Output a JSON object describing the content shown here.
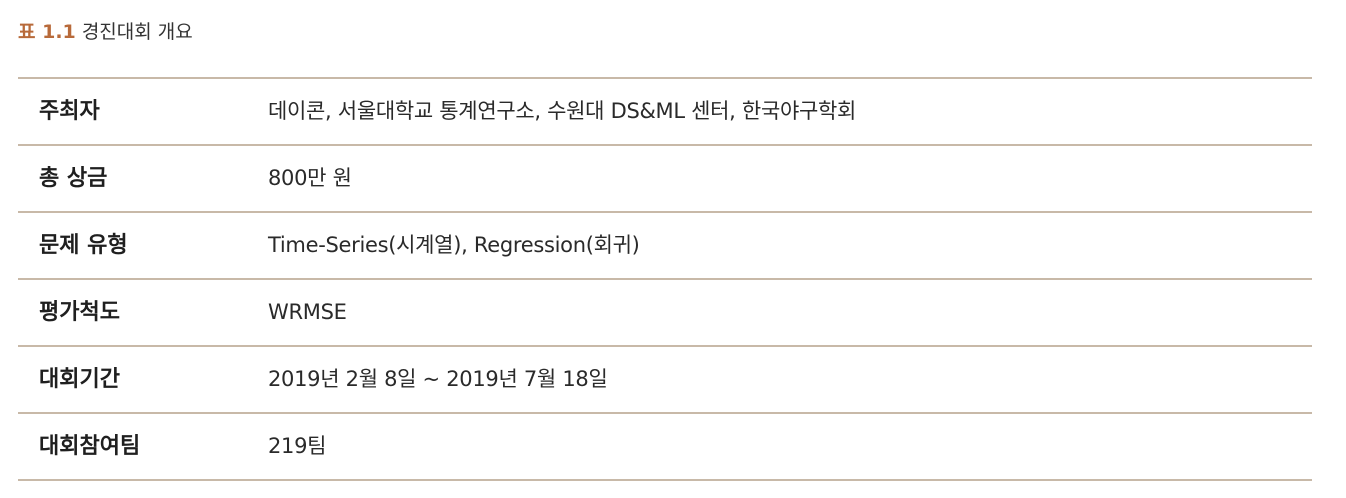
{
  "caption": {
    "label": "표 1.1",
    "title": "경진대회 개요"
  },
  "table": {
    "rows": [
      {
        "key": "주최자",
        "value": "데이콘, 서울대학교 통계연구소, 수원대 DS&ML 센터, 한국야구학회"
      },
      {
        "key": "총 상금",
        "value": "800만 원"
      },
      {
        "key": "문제 유형",
        "value": "Time-Series(시계열), Regression(회귀)"
      },
      {
        "key": "평가척도",
        "value": "WRMSE"
      },
      {
        "key": "대회기간",
        "value": "2019년 2월 8일 ~ 2019년 7월 18일"
      },
      {
        "key": "대회참여팀",
        "value": "219팀"
      }
    ]
  }
}
